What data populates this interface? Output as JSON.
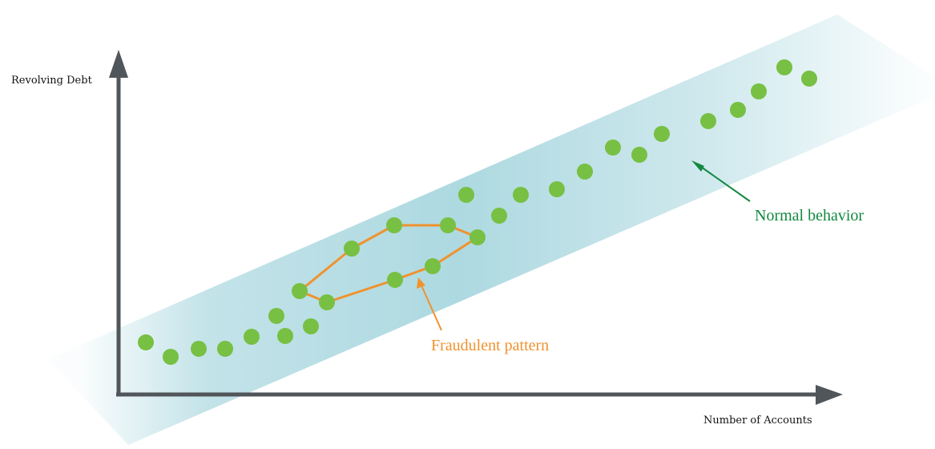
{
  "labels": {
    "y_axis": "Revolving Debt",
    "x_axis": "Number of Accounts",
    "normal": "Normal behavior",
    "fraud": "Fraudulent pattern"
  },
  "colors": {
    "point": "#77c043",
    "fraud": "#f0922e",
    "normal": "#12883f",
    "axis": "#51565a",
    "band": "#a9d7df"
  }
}
